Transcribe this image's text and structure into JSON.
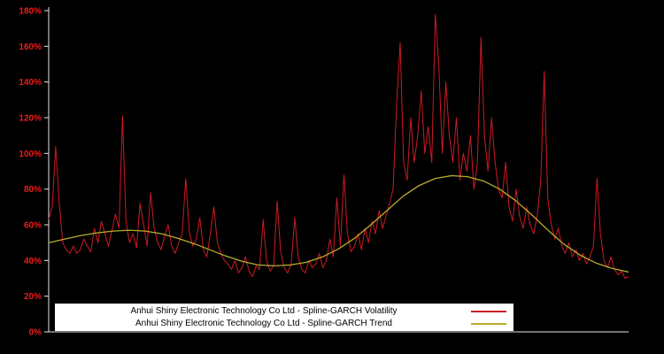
{
  "colors": {
    "background": "#000000",
    "axis": "#e6e6e6",
    "tick_label": "#ee1c1c",
    "volatility": "#cc1b24",
    "trend": "#b8ad2e",
    "legend_background": "#ffffff",
    "legend_text": "#000000"
  },
  "chart_data": {
    "type": "line",
    "title": "",
    "xlabel": "",
    "ylabel": "",
    "ylim": [
      0,
      180
    ],
    "grid": false,
    "legend_position": "bottom-center",
    "y_ticks": [
      {
        "label": "0%",
        "value": 0
      },
      {
        "label": "20%",
        "value": 20
      },
      {
        "label": "40%",
        "value": 40
      },
      {
        "label": "60%",
        "value": 60
      },
      {
        "label": "80%",
        "value": 80
      },
      {
        "label": "100%",
        "value": 100
      },
      {
        "label": "120%",
        "value": 120
      },
      {
        "label": "140%",
        "value": 140
      },
      {
        "label": "160%",
        "value": 160
      },
      {
        "label": "180%",
        "value": 180
      }
    ],
    "series": [
      {
        "name": "Anhui Shiny Electronic Technology Co Ltd - Spline-GARCH Volatility",
        "color": "#cc1b24",
        "values": [
          63,
          70,
          104,
          72,
          50,
          46,
          44,
          48,
          44,
          46,
          52,
          48,
          45,
          58,
          50,
          62,
          55,
          48,
          57,
          66,
          58,
          121,
          62,
          50,
          55,
          47,
          72,
          60,
          48,
          78,
          58,
          50,
          46,
          54,
          60,
          48,
          44,
          50,
          55,
          86,
          56,
          48,
          52,
          64,
          46,
          42,
          55,
          70,
          50,
          44,
          40,
          38,
          35,
          40,
          33,
          36,
          42,
          34,
          31,
          37,
          35,
          63,
          40,
          34,
          37,
          73,
          45,
          36,
          33,
          38,
          64,
          42,
          35,
          33,
          40,
          36,
          38,
          44,
          36,
          40,
          52,
          42,
          75,
          48,
          88,
          55,
          45,
          48,
          55,
          46,
          58,
          50,
          62,
          55,
          68,
          58,
          65,
          72,
          80,
          128,
          162,
          95,
          85,
          120,
          95,
          110,
          135,
          100,
          115,
          95,
          178,
          150,
          100,
          140,
          110,
          95,
          120,
          85,
          100,
          90,
          110,
          80,
          95,
          165,
          110,
          90,
          120,
          95,
          80,
          75,
          95,
          70,
          62,
          80,
          65,
          58,
          70,
          60,
          55,
          65,
          85,
          146,
          75,
          60,
          52,
          58,
          48,
          44,
          50,
          42,
          46,
          40,
          44,
          38,
          42,
          48,
          86,
          55,
          40,
          36,
          42,
          35,
          32,
          34,
          30,
          31
        ]
      },
      {
        "name": "Anhui Shiny Electronic Technology Co Ltd - Spline-GARCH Trend",
        "color": "#b8ad2e",
        "values": [
          50,
          52,
          54,
          55.5,
          56.5,
          57,
          56.5,
          55,
          52.5,
          49.5,
          46,
          42.5,
          39.5,
          37.5,
          37,
          37.5,
          39,
          42,
          46.5,
          52.5,
          60,
          68,
          76,
          82,
          86,
          87.5,
          87,
          84.5,
          80,
          73.5,
          65.5,
          57,
          49,
          43,
          38.5,
          35.5,
          33.5
        ]
      }
    ]
  }
}
